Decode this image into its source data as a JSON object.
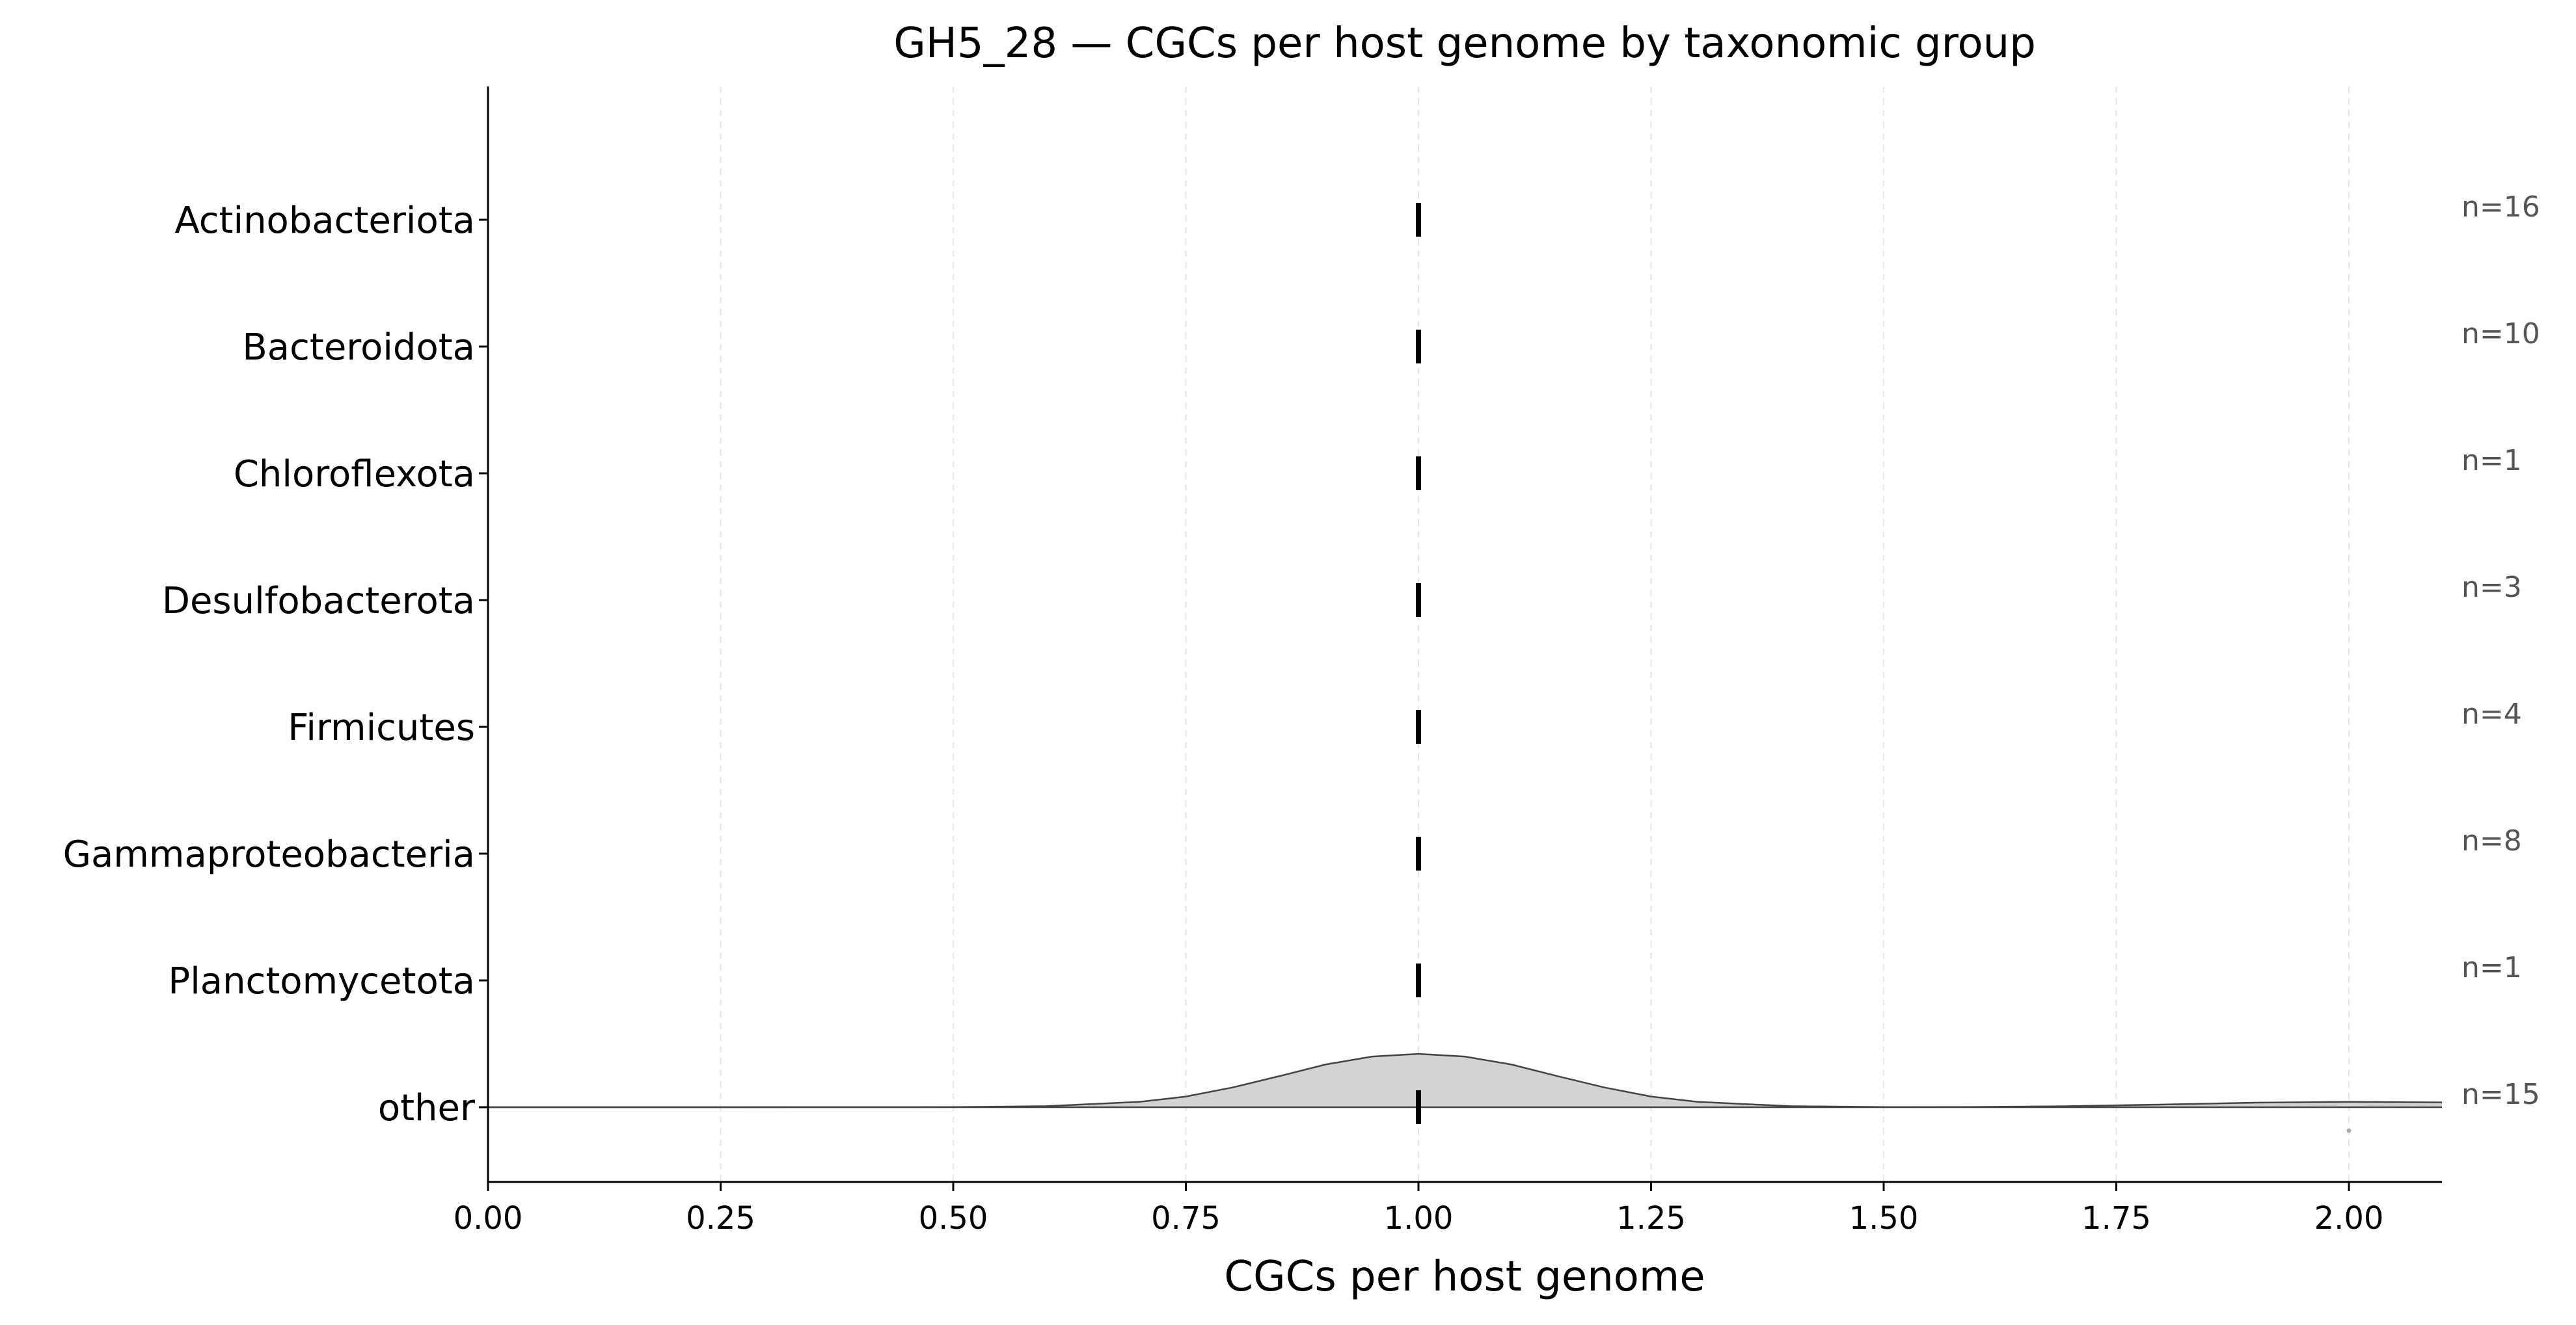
{
  "chart_data": {
    "type": "ridgeline",
    "title": "GH5_28 — CGCs per host genome by taxonomic group",
    "xlabel": "CGCs per host genome",
    "ylabel": "",
    "xlim": [
      0,
      2.1
    ],
    "xticks": [
      0,
      0.25,
      0.5,
      0.75,
      1.0,
      1.25,
      1.5,
      1.75,
      2.0
    ],
    "xtick_labels": [
      "0.00",
      "0.25",
      "0.50",
      "0.75",
      "1.00",
      "1.25",
      "1.50",
      "1.75",
      "2.00"
    ],
    "grid_x": true,
    "categories": [
      "Actinobacteriota",
      "Bacteroidota",
      "Chloroflexota",
      "Desulfobacterota",
      "Firmicutes",
      "Gammaproteobacteria",
      "Planctomycetota",
      "other"
    ],
    "n_labels": [
      "n=16",
      "n=10",
      "n=1",
      "n=3",
      "n=4",
      "n=8",
      "n=1",
      "n=15"
    ],
    "medians": [
      1.0,
      1.0,
      1.0,
      1.0,
      1.0,
      1.0,
      1.0,
      1.0
    ],
    "density": {
      "category": "other",
      "x": [
        0,
        0.25,
        0.5,
        0.6,
        0.7,
        0.75,
        0.8,
        0.85,
        0.9,
        0.95,
        1.0,
        1.05,
        1.1,
        1.15,
        1.2,
        1.25,
        1.3,
        1.4,
        1.5,
        1.6,
        1.7,
        1.8,
        1.9,
        2.0,
        2.1
      ],
      "y": [
        0,
        0,
        0.002,
        0.02,
        0.1,
        0.2,
        0.37,
        0.58,
        0.8,
        0.95,
        1.0,
        0.95,
        0.8,
        0.58,
        0.37,
        0.2,
        0.1,
        0.02,
        0.002,
        0.005,
        0.02,
        0.05,
        0.085,
        0.1,
        0.09
      ]
    },
    "outliers": [
      {
        "category": "other",
        "x": 2.0
      }
    ],
    "colors": {
      "fill": "#d3d3d3",
      "edge": "#444444",
      "median": "#000000",
      "grid": "#e6e6e6",
      "n_label": "#555555"
    }
  }
}
